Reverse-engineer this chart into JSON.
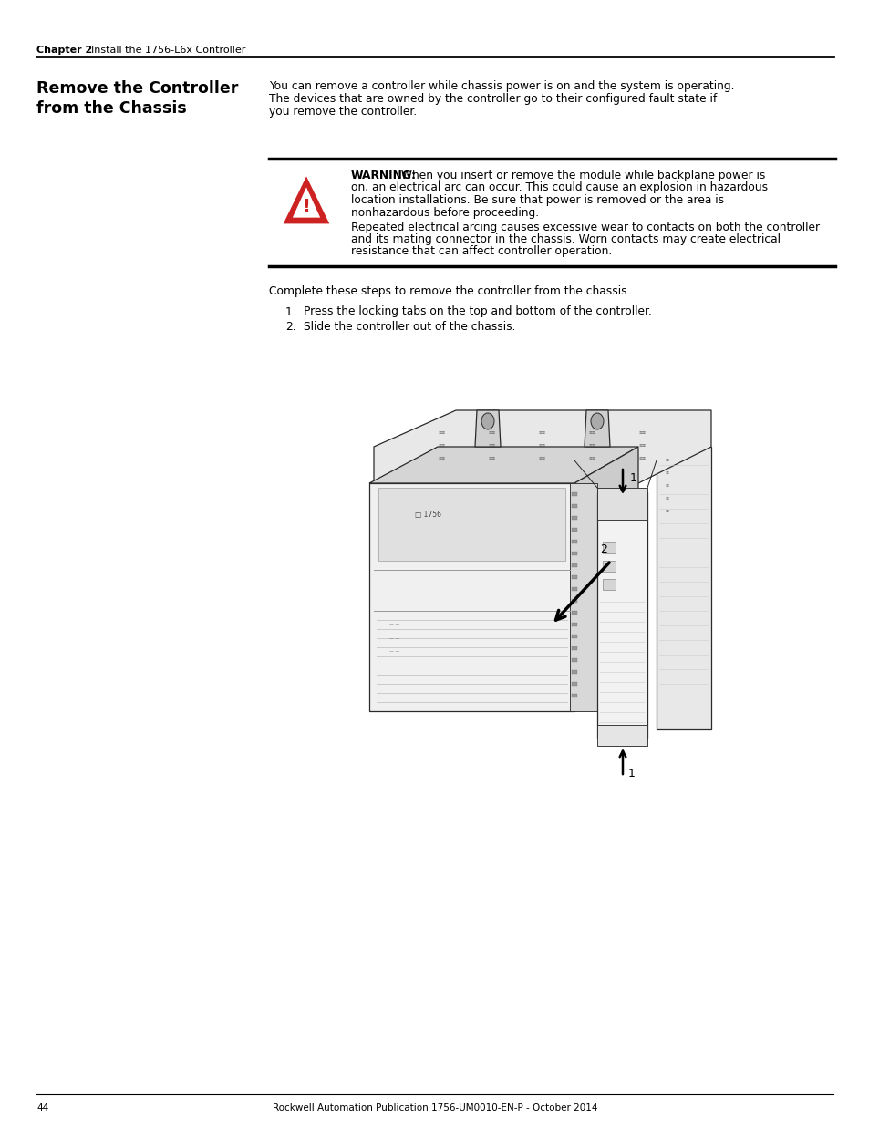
{
  "page_number": "44",
  "footer_text": "Rockwell Automation Publication 1756-UM0010-EN-P - October 2014",
  "header_chapter": "Chapter 2",
  "header_title": "Install the 1756-L6x Controller",
  "section_title_line1": "Remove the Controller",
  "section_title_line2": "from the Chassis",
  "body_text_lines": [
    "You can remove a controller while chassis power is on and the system is operating.",
    "The devices that are owned by the controller go to their configured fault state if",
    "you remove the controller."
  ],
  "warning_bold": "WARNING:",
  "warning_line1": " When you insert or remove the module while backplane power is",
  "warning_line2": "on, an electrical arc can occur. This could cause an explosion in hazardous",
  "warning_line3": "location installations. Be sure that power is removed or the area is",
  "warning_line4": "nonhazardous before proceeding.",
  "warning_line5": "Repeated electrical arcing causes excessive wear to contacts on both the controller",
  "warning_line6": "and its mating connector in the chassis. Worn contacts may create electrical",
  "warning_line7": "resistance that can affect controller operation.",
  "intro_text": "Complete these steps to remove the controller from the chassis.",
  "step1": "Press the locking tabs on the top and bottom of the controller.",
  "step2": "Slide the controller out of the chassis.",
  "bg_color": "#ffffff",
  "text_color": "#000000",
  "warning_color": "#cc0000",
  "line_color": "#000000",
  "title_font_size": 12.5,
  "body_font_size": 8.8,
  "header_font_size": 8.0,
  "footer_font_size": 7.5
}
